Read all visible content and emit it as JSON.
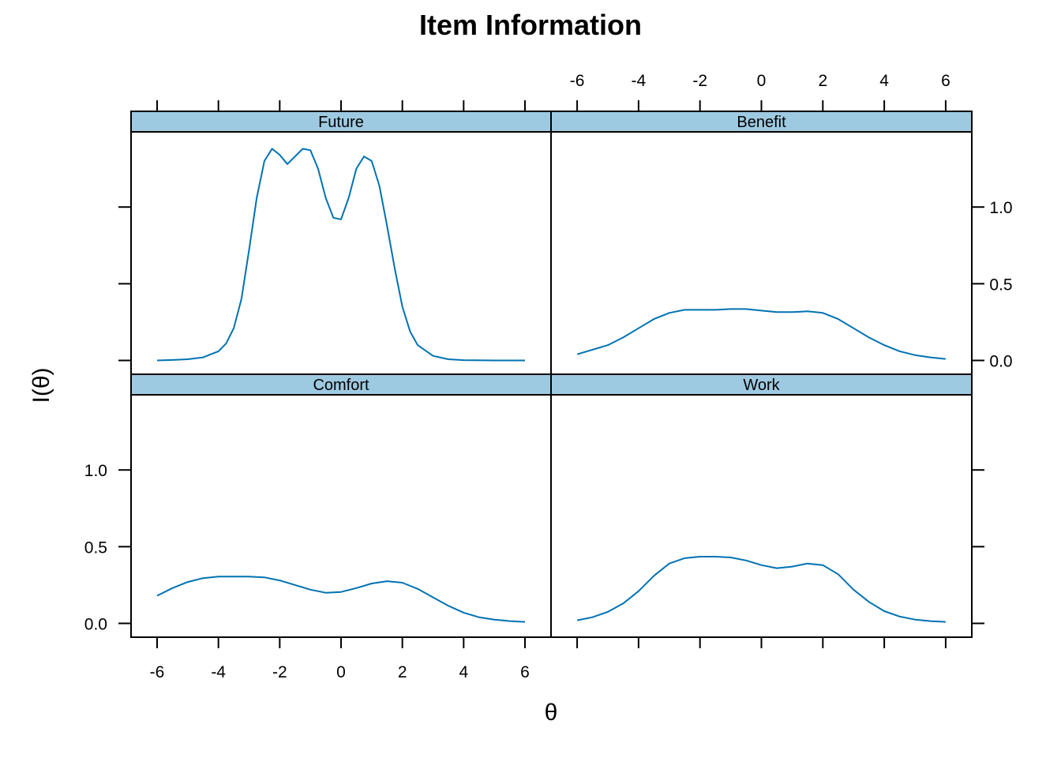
{
  "chart_data": {
    "type": "line",
    "title": "Item Information",
    "xlabel": "θ",
    "ylabel": "I(θ)",
    "xlim": [
      -6.85,
      6.85
    ],
    "ylim": [
      -0.09,
      1.49
    ],
    "x_ticks": [
      -6,
      -4,
      -2,
      0,
      2,
      4,
      6
    ],
    "x_tick_labels": [
      "-6",
      "-4",
      "-2",
      "0",
      "2",
      "4",
      "6"
    ],
    "y_ticks": [
      0.0,
      0.5,
      1.0
    ],
    "y_tick_labels": [
      "0.0",
      "0.5",
      "1.0"
    ],
    "grid": false,
    "line_color": "#0072b2",
    "strip_color": "#9ecae1",
    "panels": [
      {
        "name": "Future",
        "x": [
          -6,
          -5.5,
          -5,
          -4.5,
          -4,
          -3.75,
          -3.5,
          -3.25,
          -3,
          -2.75,
          -2.5,
          -2.25,
          -2,
          -1.75,
          -1.5,
          -1.25,
          -1,
          -0.75,
          -0.5,
          -0.25,
          0,
          0.25,
          0.5,
          0.75,
          1,
          1.25,
          1.5,
          1.75,
          2,
          2.25,
          2.5,
          3,
          3.5,
          4,
          5,
          6
        ],
        "y": [
          0.0,
          0.003,
          0.008,
          0.02,
          0.06,
          0.11,
          0.21,
          0.4,
          0.72,
          1.06,
          1.3,
          1.38,
          1.34,
          1.28,
          1.33,
          1.38,
          1.37,
          1.25,
          1.06,
          0.93,
          0.92,
          1.06,
          1.25,
          1.33,
          1.3,
          1.14,
          0.88,
          0.6,
          0.35,
          0.19,
          0.1,
          0.03,
          0.008,
          0.002,
          0.0,
          0.0
        ]
      },
      {
        "name": "Benefit",
        "x": [
          -6,
          -5,
          -4.5,
          -4,
          -3.5,
          -3,
          -2.5,
          -2,
          -1.5,
          -1,
          -0.5,
          0,
          0.5,
          1,
          1.5,
          2,
          2.5,
          3,
          3.5,
          4,
          4.5,
          5,
          5.5,
          6
        ],
        "y": [
          0.04,
          0.1,
          0.15,
          0.21,
          0.27,
          0.31,
          0.33,
          0.33,
          0.33,
          0.335,
          0.335,
          0.325,
          0.315,
          0.315,
          0.32,
          0.31,
          0.27,
          0.21,
          0.15,
          0.1,
          0.06,
          0.035,
          0.02,
          0.01
        ]
      },
      {
        "name": "Comfort",
        "x": [
          -6,
          -5.5,
          -5,
          -4.5,
          -4,
          -3.5,
          -3,
          -2.5,
          -2,
          -1.5,
          -1,
          -0.5,
          0,
          0.5,
          1,
          1.5,
          2,
          2.5,
          3,
          3.5,
          4,
          4.5,
          5,
          5.5,
          6
        ],
        "y": [
          0.18,
          0.23,
          0.27,
          0.295,
          0.305,
          0.305,
          0.305,
          0.3,
          0.28,
          0.25,
          0.22,
          0.2,
          0.205,
          0.23,
          0.26,
          0.275,
          0.265,
          0.225,
          0.17,
          0.115,
          0.07,
          0.04,
          0.025,
          0.015,
          0.01
        ]
      },
      {
        "name": "Work",
        "x": [
          -6,
          -5.5,
          -5,
          -4.5,
          -4,
          -3.5,
          -3,
          -2.5,
          -2,
          -1.5,
          -1,
          -0.5,
          0,
          0.5,
          1,
          1.5,
          2,
          2.5,
          3,
          3.5,
          4,
          4.5,
          5,
          5.5,
          6
        ],
        "y": [
          0.02,
          0.04,
          0.075,
          0.13,
          0.21,
          0.31,
          0.39,
          0.425,
          0.435,
          0.435,
          0.43,
          0.41,
          0.38,
          0.36,
          0.37,
          0.39,
          0.38,
          0.32,
          0.22,
          0.14,
          0.08,
          0.045,
          0.025,
          0.015,
          0.01
        ]
      }
    ]
  }
}
